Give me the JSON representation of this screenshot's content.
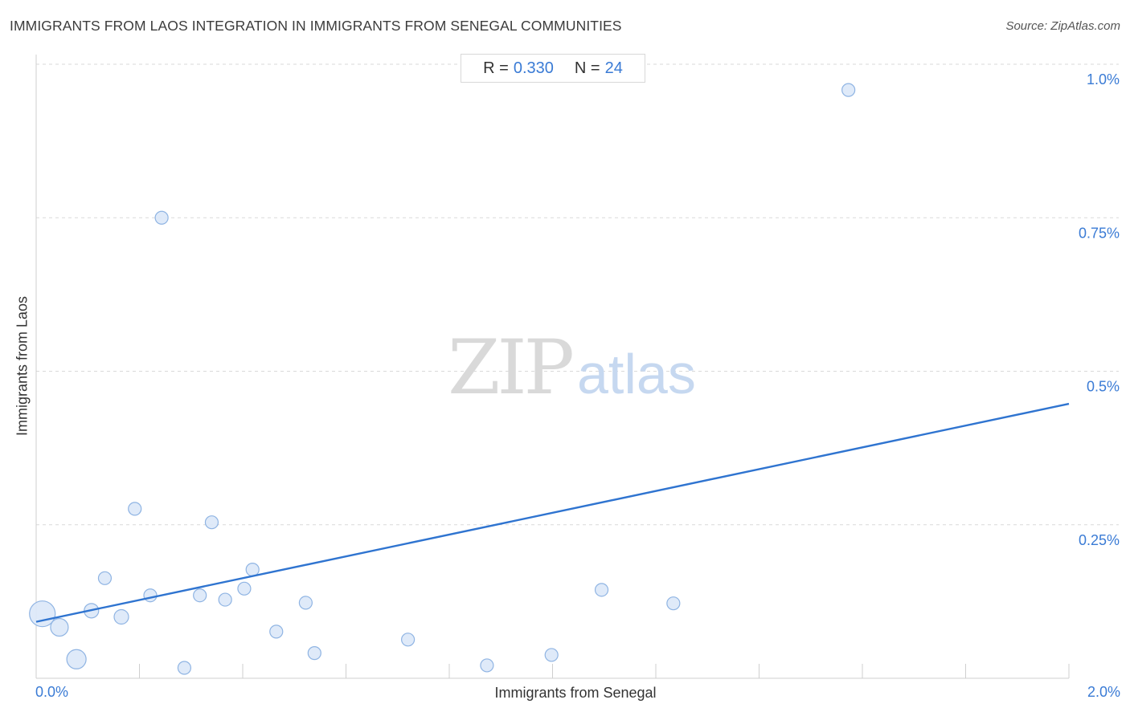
{
  "header": {
    "title": "IMMIGRANTS FROM LAOS INTEGRATION IN IMMIGRANTS FROM SENEGAL COMMUNITIES",
    "source": "Source: ZipAtlas.com"
  },
  "stats": {
    "r_label": "R =",
    "r_value": "0.330",
    "n_label": "N =",
    "n_value": "24"
  },
  "watermark": {
    "zip": "ZIP",
    "atlas": "atlas"
  },
  "colors": {
    "accent": "#3a7bd5",
    "point_fill": "#dce8f8",
    "point_stroke": "#8fb4e3",
    "trend": "#2f74d0",
    "grid": "#d9d9d9"
  },
  "chart_data": {
    "type": "scatter",
    "xlabel": "Immigrants from Senegal",
    "ylabel": "Immigrants from Laos",
    "xlim": [
      0,
      2.0
    ],
    "ylim": [
      0,
      1.0
    ],
    "x_tick_labels": [
      "0.0%",
      "2.0%"
    ],
    "y_ticks": [
      {
        "value": 0.25,
        "label": "0.25%"
      },
      {
        "value": 0.5,
        "label": "0.5%"
      },
      {
        "value": 0.75,
        "label": "0.75%"
      },
      {
        "value": 1.0,
        "label": "1.0%"
      }
    ],
    "grid": true,
    "points": [
      {
        "x": 0.012,
        "y": 0.105,
        "size": 16
      },
      {
        "x": 0.045,
        "y": 0.083,
        "size": 11
      },
      {
        "x": 0.078,
        "y": 0.031,
        "size": 12
      },
      {
        "x": 0.107,
        "y": 0.11,
        "size": 9
      },
      {
        "x": 0.133,
        "y": 0.163,
        "size": 8
      },
      {
        "x": 0.165,
        "y": 0.1,
        "size": 9
      },
      {
        "x": 0.191,
        "y": 0.276,
        "size": 8
      },
      {
        "x": 0.221,
        "y": 0.135,
        "size": 8
      },
      {
        "x": 0.243,
        "y": 0.75,
        "size": 8
      },
      {
        "x": 0.287,
        "y": 0.017,
        "size": 8
      },
      {
        "x": 0.317,
        "y": 0.135,
        "size": 8
      },
      {
        "x": 0.34,
        "y": 0.254,
        "size": 8
      },
      {
        "x": 0.366,
        "y": 0.128,
        "size": 8
      },
      {
        "x": 0.403,
        "y": 0.146,
        "size": 8
      },
      {
        "x": 0.419,
        "y": 0.177,
        "size": 8
      },
      {
        "x": 0.465,
        "y": 0.076,
        "size": 8
      },
      {
        "x": 0.522,
        "y": 0.123,
        "size": 8
      },
      {
        "x": 0.539,
        "y": 0.041,
        "size": 8
      },
      {
        "x": 0.72,
        "y": 0.063,
        "size": 8
      },
      {
        "x": 0.873,
        "y": 0.021,
        "size": 8
      },
      {
        "x": 0.998,
        "y": 0.038,
        "size": 8
      },
      {
        "x": 1.095,
        "y": 0.144,
        "size": 8
      },
      {
        "x": 1.234,
        "y": 0.122,
        "size": 8
      },
      {
        "x": 1.573,
        "y": 0.958,
        "size": 8
      }
    ],
    "trendline": {
      "x": [
        0.0,
        2.0
      ],
      "y": [
        0.092,
        0.447
      ]
    }
  }
}
